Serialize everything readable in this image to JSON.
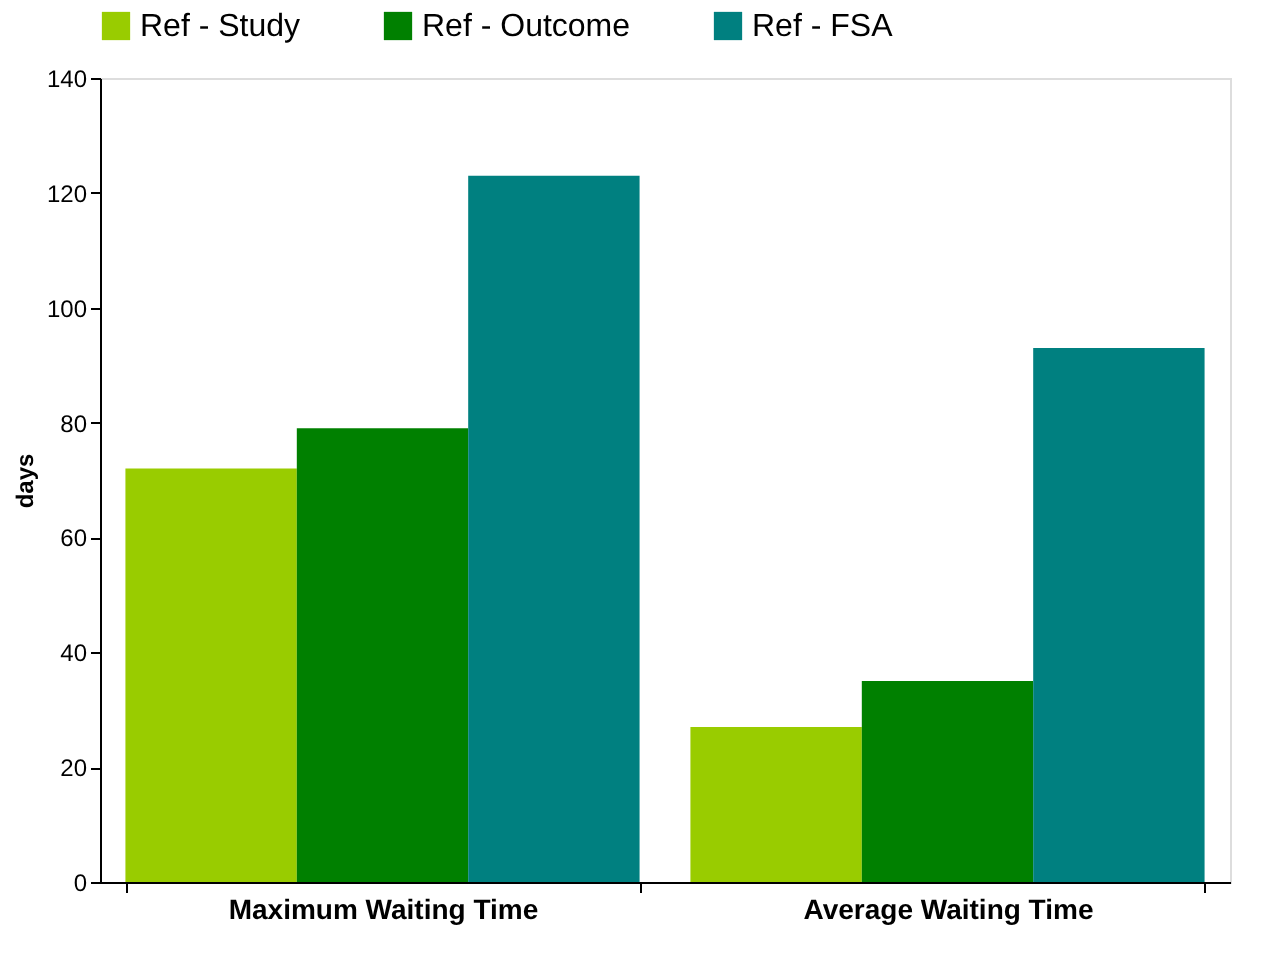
{
  "chart_data": {
    "type": "bar",
    "ylabel": "days",
    "categories": [
      "Maximum Waiting Time",
      "Average Waiting Time"
    ],
    "series": [
      {
        "name": "Ref - Study",
        "color": "#99cc00",
        "values": [
          72,
          27
        ]
      },
      {
        "name": "Ref - Outcome",
        "color": "#008000",
        "values": [
          79,
          35
        ]
      },
      {
        "name": "Ref - FSA",
        "color": "#008080",
        "values": [
          123,
          93
        ]
      }
    ],
    "ylim": [
      0,
      140
    ],
    "yticks": [
      0,
      20,
      40,
      60,
      80,
      100,
      120,
      140
    ],
    "grid": false,
    "legend": "top"
  }
}
